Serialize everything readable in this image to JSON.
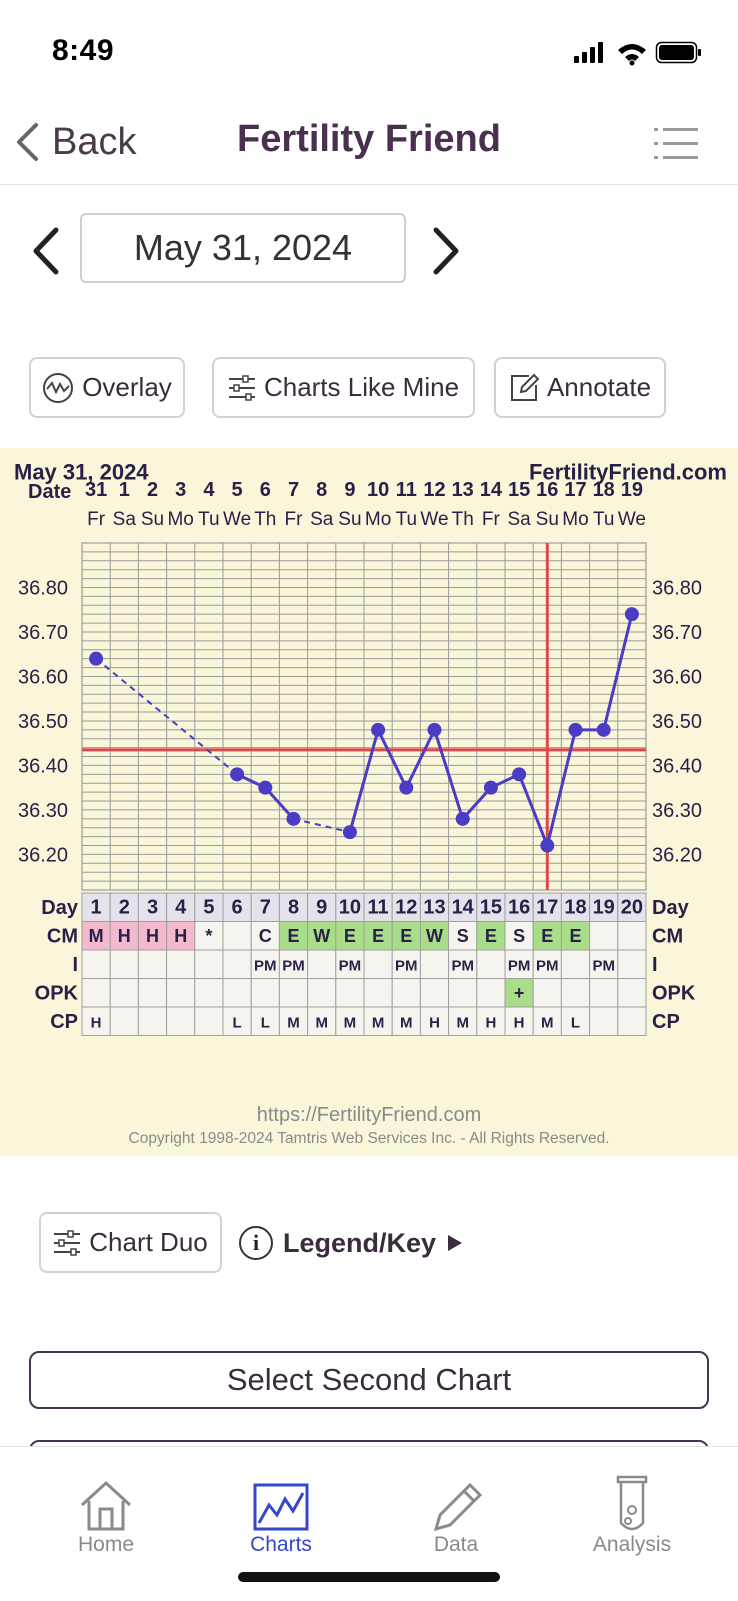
{
  "status_bar": {
    "time": "8:49"
  },
  "nav": {
    "back_label": "Back",
    "title": "Fertility Friend"
  },
  "date_picker": {
    "value": "May 31, 2024"
  },
  "actions": {
    "overlay": "Overlay",
    "charts_like_mine": "Charts Like Mine",
    "annotate": "Annotate"
  },
  "chart_header": {
    "date": "May 31, 2024",
    "site": "FertilityFriend.com",
    "date_label": "Date"
  },
  "chart_data": {
    "type": "line",
    "dates": [
      "31",
      "1",
      "2",
      "3",
      "4",
      "5",
      "6",
      "7",
      "8",
      "9",
      "10",
      "11",
      "12",
      "13",
      "14",
      "15",
      "16",
      "17",
      "18",
      "19"
    ],
    "weekdays": [
      "Fr",
      "Sa",
      "Su",
      "Mo",
      "Tu",
      "We",
      "Th",
      "Fr",
      "Sa",
      "Su",
      "Mo",
      "Tu",
      "We",
      "Th",
      "Fr",
      "Sa",
      "Su",
      "Mo",
      "Tu",
      "We"
    ],
    "cycle_days": [
      "1",
      "2",
      "3",
      "4",
      "5",
      "6",
      "7",
      "8",
      "9",
      "10",
      "11",
      "12",
      "13",
      "14",
      "15",
      "16",
      "17",
      "18",
      "19",
      "20"
    ],
    "temps": [
      36.64,
      null,
      null,
      null,
      null,
      36.38,
      36.35,
      36.28,
      null,
      36.25,
      36.48,
      36.35,
      36.48,
      36.28,
      36.35,
      36.38,
      36.22,
      36.48,
      36.48,
      36.74
    ],
    "y_ticks": [
      "36.80",
      "36.70",
      "36.60",
      "36.50",
      "36.40",
      "36.30",
      "36.20"
    ],
    "ylim": [
      36.12,
      36.9
    ],
    "coverline": 36.435,
    "ovulation_day": 17,
    "line_color": "#4a3cc4",
    "coverline_color": "#e0474c",
    "rows": {
      "Day": "Day",
      "CM": {
        "label": "CM",
        "values": [
          "M",
          "H",
          "H",
          "H",
          "*",
          "",
          "C",
          "E",
          "W",
          "E",
          "E",
          "E",
          "W",
          "S",
          "E",
          "S",
          "E",
          "E",
          "",
          ""
        ],
        "colors": [
          "#f3b9cf",
          "#f3b9cf",
          "#f3b9cf",
          "#f3b9cf",
          "",
          "",
          "",
          "#a9dd8a",
          "#a9dd8a",
          "#a9dd8a",
          "#a9dd8a",
          "#a9dd8a",
          "#a9dd8a",
          "",
          "#a9dd8a",
          "",
          "#a9dd8a",
          "#a9dd8a",
          "",
          ""
        ]
      },
      "I": {
        "label": "I",
        "values": [
          "",
          "",
          "",
          "",
          "",
          "",
          "PM",
          "PM",
          "",
          "PM",
          "",
          "PM",
          "",
          "PM",
          "",
          "PM",
          "PM",
          "",
          "PM",
          ""
        ]
      },
      "OPK": {
        "label": "OPK",
        "values": [
          "",
          "",
          "",
          "",
          "",
          "",
          "",
          "",
          "",
          "",
          "",
          "",
          "",
          "",
          "",
          "+",
          "",
          "",
          "",
          ""
        ],
        "colors": [
          "",
          "",
          "",
          "",
          "",
          "",
          "",
          "",
          "",
          "",
          "",
          "",
          "",
          "",
          "",
          "#a9dd8a",
          "",
          "",
          "",
          ""
        ]
      },
      "CP": {
        "label": "CP",
        "values": [
          "H",
          "",
          "",
          "",
          "",
          "L",
          "L",
          "M",
          "M",
          "M",
          "M",
          "M",
          "H",
          "M",
          "H",
          "H",
          "M",
          "L",
          "",
          ""
        ]
      }
    }
  },
  "chart_footer": {
    "url": "https://FertilityFriend.com",
    "copyright": "Copyright 1998-2024 Tamtris Web Services Inc. - All Rights Reserved."
  },
  "lower": {
    "chart_duo": "Chart Duo",
    "legend_key": "Legend/Key",
    "legend_info": "i",
    "select_second": "Select Second Chart"
  },
  "tabs": [
    {
      "label": "Home",
      "icon": "home-icon",
      "active": false
    },
    {
      "label": "Charts",
      "icon": "charts-icon",
      "active": true
    },
    {
      "label": "Data",
      "icon": "pencil-icon",
      "active": false
    },
    {
      "label": "Analysis",
      "icon": "test-tube-icon",
      "active": false
    }
  ]
}
